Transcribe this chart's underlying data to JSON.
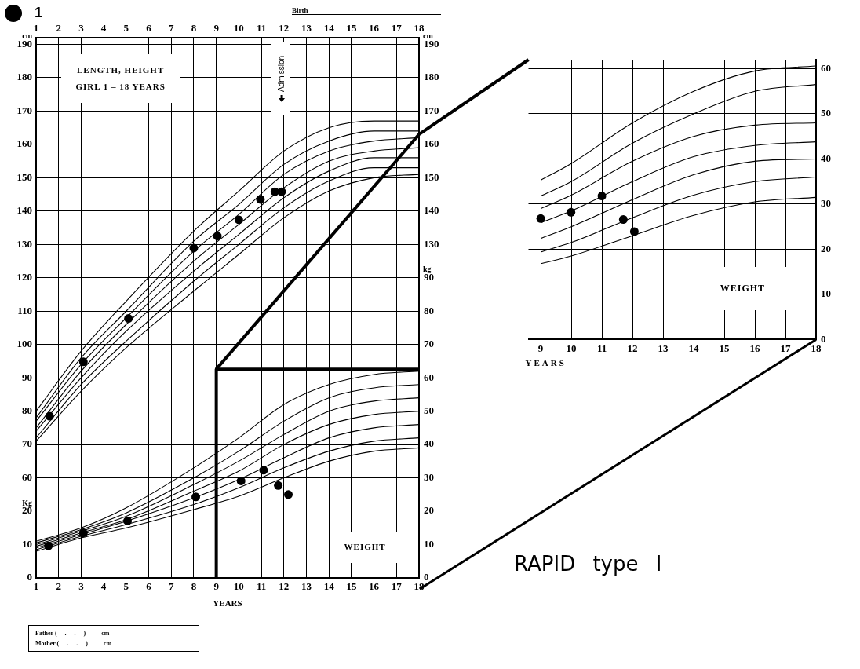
{
  "chart_data": [
    {
      "type": "scatter",
      "xlabel": "YEARS",
      "ylabel": "cm",
      "y2label": "cm",
      "xlim": [
        1,
        18
      ],
      "xticks": [
        1,
        2,
        3,
        4,
        5,
        6,
        7,
        8,
        9,
        10,
        11,
        12,
        13,
        14,
        15,
        16,
        17,
        18
      ],
      "x2lim": [
        1,
        18
      ],
      "x2ticks": [
        1,
        2,
        3,
        4,
        5,
        6,
        7,
        8,
        9,
        10,
        11,
        12,
        13,
        14,
        15,
        16,
        17,
        18
      ],
      "ylim": [
        30,
        192
      ],
      "yticks": [
        60,
        70,
        80,
        90,
        100,
        110,
        120,
        130,
        140,
        150,
        160,
        170,
        180,
        190
      ],
      "y2lim": [
        30,
        192
      ],
      "y2ticks": [
        130,
        140,
        150,
        160,
        170,
        180,
        190
      ],
      "grid": true,
      "marker": "circle",
      "annotations": [
        "1",
        "Birth",
        "LENGTH, HEIGHT",
        "GIRL 1 – 18 YEARS",
        "Admission",
        "RAPID type I",
        "Father (     .     .     )          cm",
        "Mother (     .     .     )          cm"
      ],
      "series": [
        {
          "type": "scatter",
          "axis": "y",
          "color": "#000000",
          "x": [
            1.6,
            3.1,
            5.1,
            8,
            9.05,
            10,
            10.96,
            11.6,
            11.9
          ],
          "values": [
            78.5,
            94.8,
            107.8,
            128.9,
            132.5,
            137.4,
            143.5,
            145.8,
            145.8
          ]
        },
        {
          "type": "line",
          "axis": "y",
          "marker": "none",
          "color": "#000000",
          "x": [
            1,
            3,
            5,
            8,
            10,
            12,
            14,
            16,
            18
          ],
          "values": [
            80,
            98,
            113,
            134,
            146,
            158,
            165,
            167,
            167
          ]
        },
        {
          "type": "line",
          "axis": "y",
          "marker": "none",
          "color": "#000000",
          "x": [
            1,
            3,
            5,
            8,
            10,
            12,
            14,
            16,
            18
          ],
          "values": [
            78,
            96,
            110,
            131,
            142,
            154,
            161,
            164,
            164
          ]
        },
        {
          "type": "line",
          "axis": "y",
          "marker": "none",
          "color": "#000000",
          "x": [
            1,
            3,
            5,
            8,
            10,
            12,
            14,
            16,
            18
          ],
          "values": [
            77,
            94,
            108,
            128,
            139,
            151,
            158,
            161,
            162
          ]
        },
        {
          "type": "line",
          "axis": "y",
          "marker": "none",
          "color": "#000000",
          "x": [
            1,
            3,
            5,
            8,
            10,
            12,
            14,
            16,
            18
          ],
          "values": [
            75,
            92,
            106,
            125,
            136,
            147,
            155,
            158,
            159
          ]
        },
        {
          "type": "line",
          "axis": "y",
          "marker": "none",
          "color": "#000000",
          "x": [
            1,
            3,
            5,
            8,
            10,
            12,
            14,
            16,
            18
          ],
          "values": [
            74,
            90,
            104,
            122,
            133,
            144,
            152,
            156,
            156
          ]
        },
        {
          "type": "line",
          "axis": "y",
          "marker": "none",
          "color": "#000000",
          "x": [
            1,
            3,
            5,
            8,
            10,
            12,
            14,
            16,
            18
          ],
          "values": [
            72,
            88,
            101,
            119,
            130,
            141,
            149,
            153,
            153
          ]
        },
        {
          "type": "line",
          "axis": "y",
          "marker": "none",
          "color": "#000000",
          "x": [
            1,
            3,
            5,
            8,
            10,
            12,
            14,
            16,
            18
          ],
          "values": [
            71,
            86,
            99,
            116,
            127,
            138,
            146,
            150,
            151
          ]
        },
        {
          "type": "line",
          "axis": "y",
          "marker": "none",
          "color": "#000000",
          "x": [
            9,
            18
          ],
          "values": [
            92.6,
            163
          ]
        }
      ]
    },
    {
      "type": "scatter",
      "ylabel": "Kg",
      "y2label": "kg",
      "xlim": [
        1,
        18
      ],
      "ylim": [
        0,
        162
      ],
      "yticks": [
        0,
        10,
        20
      ],
      "y2lim": [
        0,
        162
      ],
      "y2ticks": [
        0,
        10,
        20,
        30,
        40,
        50,
        60,
        70,
        80,
        90
      ],
      "tick_labels": "y",
      "marker": "circle",
      "annotations": [
        "WEIGHT"
      ],
      "series": [
        {
          "type": "scatter",
          "axis": "y",
          "color": "#000000",
          "x": [
            1.55,
            3.1,
            5.06,
            8.09,
            10.1,
            11.1,
            11.75,
            12.2
          ],
          "values": [
            9.6,
            13.5,
            17.1,
            24.3,
            29.1,
            32.3,
            27.7,
            25
          ]
        },
        {
          "type": "line",
          "axis": "y",
          "marker": "none",
          "color": "#000000",
          "x": [
            1,
            3,
            5,
            8,
            10,
            12,
            14,
            16,
            18
          ],
          "values": [
            11,
            15,
            21,
            33,
            42,
            52,
            58,
            61,
            62
          ]
        },
        {
          "type": "line",
          "axis": "y",
          "marker": "none",
          "color": "#000000",
          "x": [
            1,
            3,
            5,
            8,
            10,
            12,
            14,
            16,
            18
          ],
          "values": [
            10.5,
            14.5,
            19.5,
            30,
            38,
            47,
            54,
            57,
            58
          ]
        },
        {
          "type": "line",
          "axis": "y",
          "marker": "none",
          "color": "#000000",
          "x": [
            1,
            3,
            5,
            8,
            10,
            12,
            14,
            16,
            18
          ],
          "values": [
            10,
            14,
            18.5,
            28,
            35,
            43,
            50,
            53,
            54
          ]
        },
        {
          "type": "line",
          "axis": "y",
          "marker": "none",
          "color": "#000000",
          "x": [
            1,
            3,
            5,
            8,
            10,
            12,
            14,
            16,
            18
          ],
          "values": [
            9.5,
            13.5,
            17.5,
            26,
            32,
            40,
            46,
            49,
            50
          ]
        },
        {
          "type": "line",
          "axis": "y",
          "marker": "none",
          "color": "#000000",
          "x": [
            1,
            3,
            5,
            8,
            10,
            12,
            14,
            16,
            18
          ],
          "values": [
            9,
            13,
            17,
            24,
            29.5,
            36,
            42,
            45,
            46
          ]
        },
        {
          "type": "line",
          "axis": "y",
          "marker": "none",
          "color": "#000000",
          "x": [
            1,
            3,
            5,
            8,
            10,
            12,
            14,
            16,
            18
          ],
          "values": [
            8.5,
            12.5,
            16,
            22,
            27,
            33,
            38,
            41,
            42
          ]
        },
        {
          "type": "line",
          "axis": "y",
          "marker": "none",
          "color": "#000000",
          "x": [
            1,
            3,
            5,
            8,
            10,
            12,
            14,
            16,
            18
          ],
          "values": [
            8,
            12,
            15,
            20.5,
            24.5,
            30,
            35,
            38,
            39
          ]
        },
        {
          "type": "line",
          "axis": "y",
          "marker": "none",
          "color": "#000000",
          "x": [
            9,
            9,
            18
          ],
          "values": [
            0,
            62.6,
            62.6
          ]
        }
      ]
    },
    {
      "type": "scatter",
      "xlabel": "YEARS",
      "xlim": [
        8.6,
        18
      ],
      "xticks": [
        9,
        10,
        11,
        12,
        13,
        14,
        15,
        16,
        17,
        18
      ],
      "y2lim": [
        0,
        62
      ],
      "y2ticks": [
        0,
        10,
        20,
        30,
        40,
        50,
        60
      ],
      "grid": true,
      "marker": "circle",
      "annotations": [
        "WEIGHT"
      ],
      "series": [
        {
          "type": "scatter",
          "axis": "y2",
          "color": "#000000",
          "x": [
            9,
            9.99,
            11,
            11.7,
            12.06
          ],
          "values": [
            26.8,
            28.2,
            31.8,
            26.6,
            23.9
          ]
        },
        {
          "type": "line",
          "axis": "y2",
          "marker": "none",
          "color": "#000000",
          "x": [
            9,
            10,
            12,
            14,
            16,
            18
          ],
          "values": [
            35.3,
            39,
            48,
            55,
            59.5,
            60.6
          ]
        },
        {
          "type": "line",
          "axis": "y2",
          "marker": "none",
          "color": "#000000",
          "x": [
            9,
            10,
            12,
            14,
            16,
            18
          ],
          "values": [
            31.8,
            35,
            43.5,
            50,
            55,
            56.5
          ]
        },
        {
          "type": "line",
          "axis": "y2",
          "marker": "none",
          "color": "#000000",
          "x": [
            9,
            10,
            12,
            14,
            16,
            18
          ],
          "values": [
            29,
            32,
            39.5,
            45,
            47.5,
            48
          ]
        },
        {
          "type": "line",
          "axis": "y2",
          "marker": "none",
          "color": "#000000",
          "x": [
            9,
            10,
            12,
            14,
            16,
            18
          ],
          "values": [
            25.9,
            28.5,
            35,
            40.5,
            43,
            43.8
          ]
        },
        {
          "type": "line",
          "axis": "y2",
          "marker": "none",
          "color": "#000000",
          "x": [
            9,
            10,
            12,
            14,
            16,
            18
          ],
          "values": [
            22.4,
            25,
            31,
            36.5,
            39.5,
            40
          ]
        },
        {
          "type": "line",
          "axis": "y2",
          "marker": "none",
          "color": "#000000",
          "x": [
            9,
            10,
            12,
            14,
            16,
            18
          ],
          "values": [
            19.4,
            21.5,
            27,
            32,
            35,
            36
          ]
        },
        {
          "type": "line",
          "axis": "y2",
          "marker": "none",
          "color": "#000000",
          "x": [
            9,
            10,
            12,
            14,
            16,
            18
          ],
          "values": [
            16.8,
            18.5,
            23,
            27.5,
            30.5,
            31.5
          ]
        }
      ]
    }
  ]
}
